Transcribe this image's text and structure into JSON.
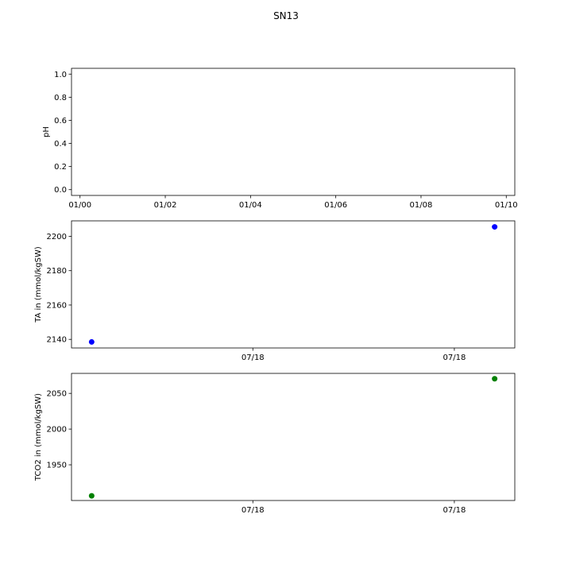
{
  "figure": {
    "title": "SN13"
  },
  "chart_data": [
    {
      "type": "scatter",
      "ylabel": "pH",
      "xlim": [
        -0.2,
        10.2
      ],
      "ylim": [
        -0.05,
        1.05
      ],
      "x_ticks": [
        {
          "value": 0,
          "label": "01/00"
        },
        {
          "value": 2,
          "label": "01/02"
        },
        {
          "value": 4,
          "label": "01/04"
        },
        {
          "value": 6,
          "label": "01/06"
        },
        {
          "value": 8,
          "label": "01/08"
        },
        {
          "value": 10,
          "label": "01/10"
        }
      ],
      "y_ticks": [
        {
          "value": 0.0,
          "label": "0.0"
        },
        {
          "value": 0.2,
          "label": "0.2"
        },
        {
          "value": 0.4,
          "label": "0.4"
        },
        {
          "value": 0.6,
          "label": "0.6"
        },
        {
          "value": 0.8,
          "label": "0.8"
        },
        {
          "value": 1.0,
          "label": "1.0"
        }
      ],
      "series": [
        {
          "color": "#0000ff",
          "points": []
        }
      ]
    },
    {
      "type": "scatter",
      "ylabel": "TA in (mmol/kgSW)",
      "xlim": [
        -0.05,
        1.05
      ],
      "ylim": [
        2135,
        2209
      ],
      "x_ticks": [
        {
          "value": 0.4,
          "label": "07/18"
        },
        {
          "value": 0.9,
          "label": "07/18"
        }
      ],
      "y_ticks": [
        {
          "value": 2140,
          "label": "2140"
        },
        {
          "value": 2160,
          "label": "2160"
        },
        {
          "value": 2180,
          "label": "2180"
        },
        {
          "value": 2200,
          "label": "2200"
        }
      ],
      "series": [
        {
          "color": "#0000ff",
          "points": [
            [
              0.0,
              2138.5
            ],
            [
              1.0,
              2205.5
            ]
          ]
        }
      ]
    },
    {
      "type": "scatter",
      "ylabel": "TCO2 in (mmol/kgSW)",
      "xlim": [
        -0.05,
        1.05
      ],
      "ylim": [
        1900,
        2078
      ],
      "x_ticks": [
        {
          "value": 0.4,
          "label": "07/18"
        },
        {
          "value": 0.9,
          "label": "07/18"
        }
      ],
      "y_ticks": [
        {
          "value": 1950,
          "label": "1950"
        },
        {
          "value": 2000,
          "label": "2000"
        },
        {
          "value": 2050,
          "label": "2050"
        }
      ],
      "series": [
        {
          "color": "#008000",
          "points": [
            [
              0.0,
              1906.5
            ],
            [
              1.0,
              2070.5
            ]
          ]
        }
      ]
    }
  ]
}
